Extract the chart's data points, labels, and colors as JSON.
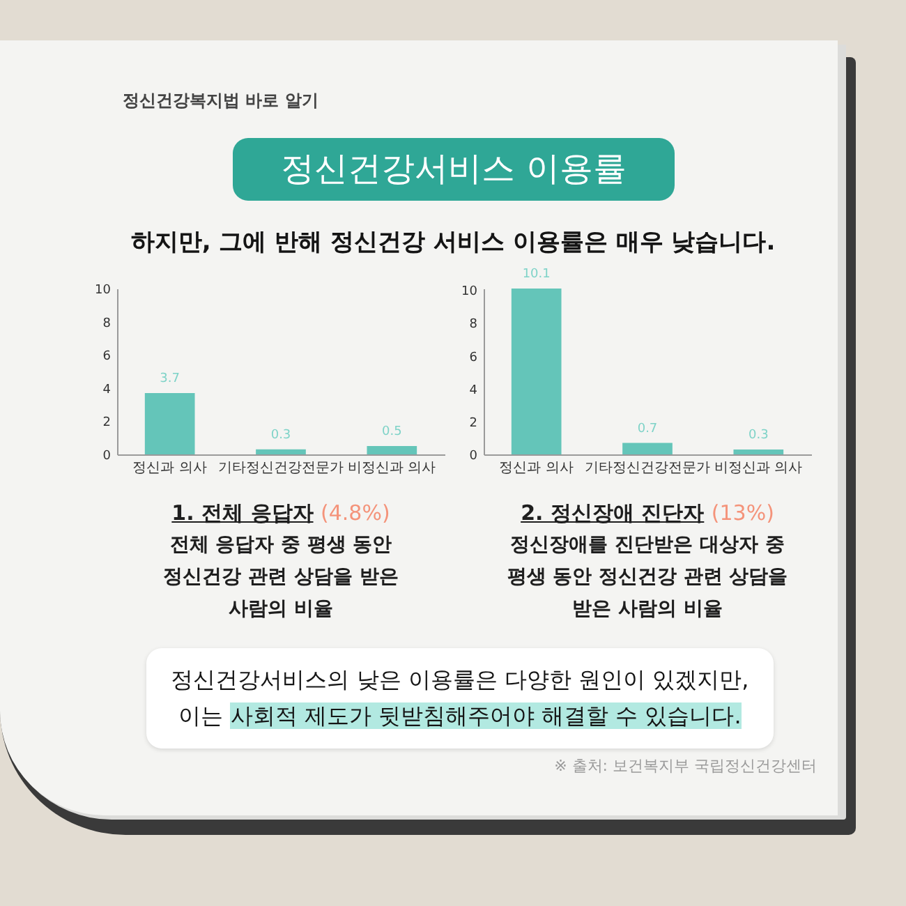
{
  "chart_data": [
    {
      "type": "other",
      "title": "정신건강서비스 이용률",
      "subtitle": "하지만, 그에 반해 정신건강 서비스 이용률은 매우 낮습니다.",
      "annotations": [
        "정신건강복지법 바로 알기"
      ]
    },
    {
      "type": "bar",
      "title": "1. 전체 응답자 (4.8%)",
      "subtitle": "전체 응답자 중 평생 동안\n정신건강 관련 상담을 받은\n사람의 비율",
      "categories": [
        "정신과 의사",
        "기타정신건강전문가",
        "비정신과 의사"
      ],
      "values": [
        3.7,
        0.3,
        0.5
      ],
      "color": "#64c5b9",
      "ylim": [
        0,
        10
      ],
      "yticks": [
        0,
        2,
        4,
        6,
        8,
        10
      ],
      "data_labels": true
    },
    {
      "type": "bar",
      "title": "2. 정신장애 진단자 (13%)",
      "subtitle": "정신장애를 진단받은 대상자 중\n평생 동안 정신건강 관련 상담을\n받은 사람의 비율",
      "categories": [
        "정신과 의사",
        "기타정신건강전문가",
        "비정신과 의사"
      ],
      "values": [
        10.1,
        0.7,
        0.3
      ],
      "color": "#64c5b9",
      "ylim": [
        0,
        10.1
      ],
      "yticks": [
        0,
        2,
        4,
        6,
        8,
        10
      ],
      "data_labels": true
    },
    {
      "type": "other",
      "annotations": [
        "정신건강서비스의 낮은 이용률은 다양한 원인이 있겠지만,\n이는 사회적 제도가 뒷받침해주어야 해결할 수 있습니다.",
        "※ 출처: 보건복지부 국립정신건강센터"
      ]
    }
  ]
}
